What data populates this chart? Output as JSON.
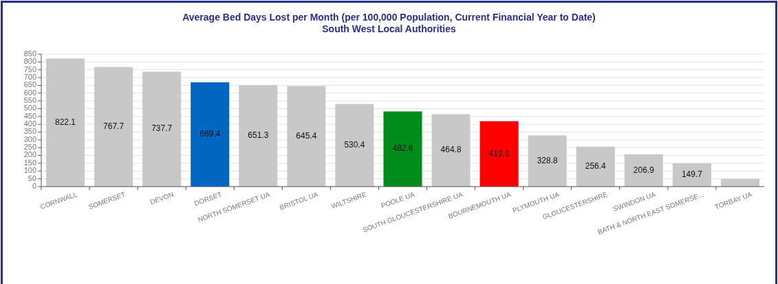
{
  "chart_data": {
    "type": "bar",
    "title": "Average Bed Days Lost per Month (per 100,000 Population, Current Financial Year to Date)",
    "subtitle": "South West Local Authorities",
    "categories": [
      "CORNWALL",
      "SOMERSET",
      "DEVON",
      "DORSET",
      "NORTH SOMERSET UA",
      "BRISTOL UA",
      "WILTSHIRE",
      "POOLE UA",
      "SOUTH GLOUCESTERSHIRE UA",
      "BOURNEMOUTH UA",
      "PLYMOUTH UA",
      "GLOUCESTERSHIRE",
      "SWINDON UA",
      "BATH & NORTH EAST SOMERSE...",
      "TORBAY UA"
    ],
    "values": [
      822.1,
      767.7,
      737.7,
      669.4,
      651.3,
      645.4,
      530.4,
      482.6,
      464.8,
      419.9,
      328.8,
      256.4,
      206.9,
      149.7,
      50
    ],
    "value_labels": [
      "822.1",
      "767.7",
      "737.7",
      "669.4",
      "651.3",
      "645.4",
      "530.4",
      "482.6",
      "464.8",
      "419.9",
      "328.8",
      "256.4",
      "206.9",
      "149.7",
      null
    ],
    "colors": [
      "#c8c8c8",
      "#c8c8c8",
      "#c8c8c8",
      "#0066c0",
      "#c8c8c8",
      "#c8c8c8",
      "#c8c8c8",
      "#008c1a",
      "#c8c8c8",
      "#ff0000",
      "#c8c8c8",
      "#c8c8c8",
      "#c8c8c8",
      "#c8c8c8",
      "#c8c8c8"
    ],
    "ylim": [
      0,
      850
    ],
    "yticks": [
      0,
      50,
      100,
      150,
      200,
      250,
      300,
      350,
      400,
      450,
      500,
      550,
      600,
      650,
      700,
      750,
      800,
      850
    ],
    "grid": "y"
  }
}
